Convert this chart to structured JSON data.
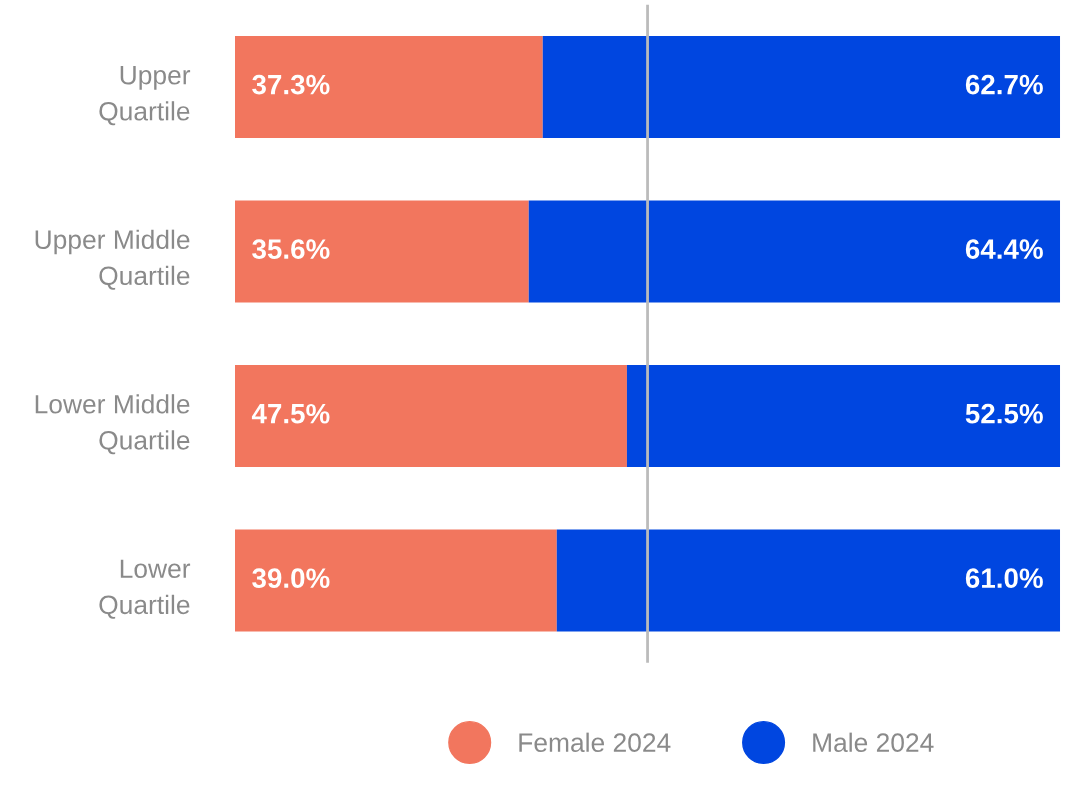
{
  "chart_data": {
    "type": "bar",
    "orientation": "horizontal",
    "stacked": true,
    "xlim": [
      0,
      100
    ],
    "categories": [
      "Upper\nQuartile",
      "Upper Middle\nQuartile",
      "Lower Middle\nQuartile",
      "Lower\nQuartile"
    ],
    "series": [
      {
        "name": "Female 2024",
        "color": "#f2765e",
        "values": [
          37.3,
          35.6,
          47.5,
          39.0
        ],
        "value_labels": [
          "37.3%",
          "35.6%",
          "47.5%",
          "39.0%"
        ]
      },
      {
        "name": "Male 2024",
        "color": "#0046e0",
        "values": [
          62.7,
          64.4,
          52.5,
          61.0
        ],
        "value_labels": [
          "62.7%",
          "64.4%",
          "52.5%",
          "61.0%"
        ]
      }
    ],
    "ref_lines": [
      {
        "axis": "x",
        "value": 50,
        "color": "#bbbbbb"
      }
    ],
    "legend": "bottom",
    "marker": "circle",
    "tick_labels": "y",
    "grid": false
  }
}
